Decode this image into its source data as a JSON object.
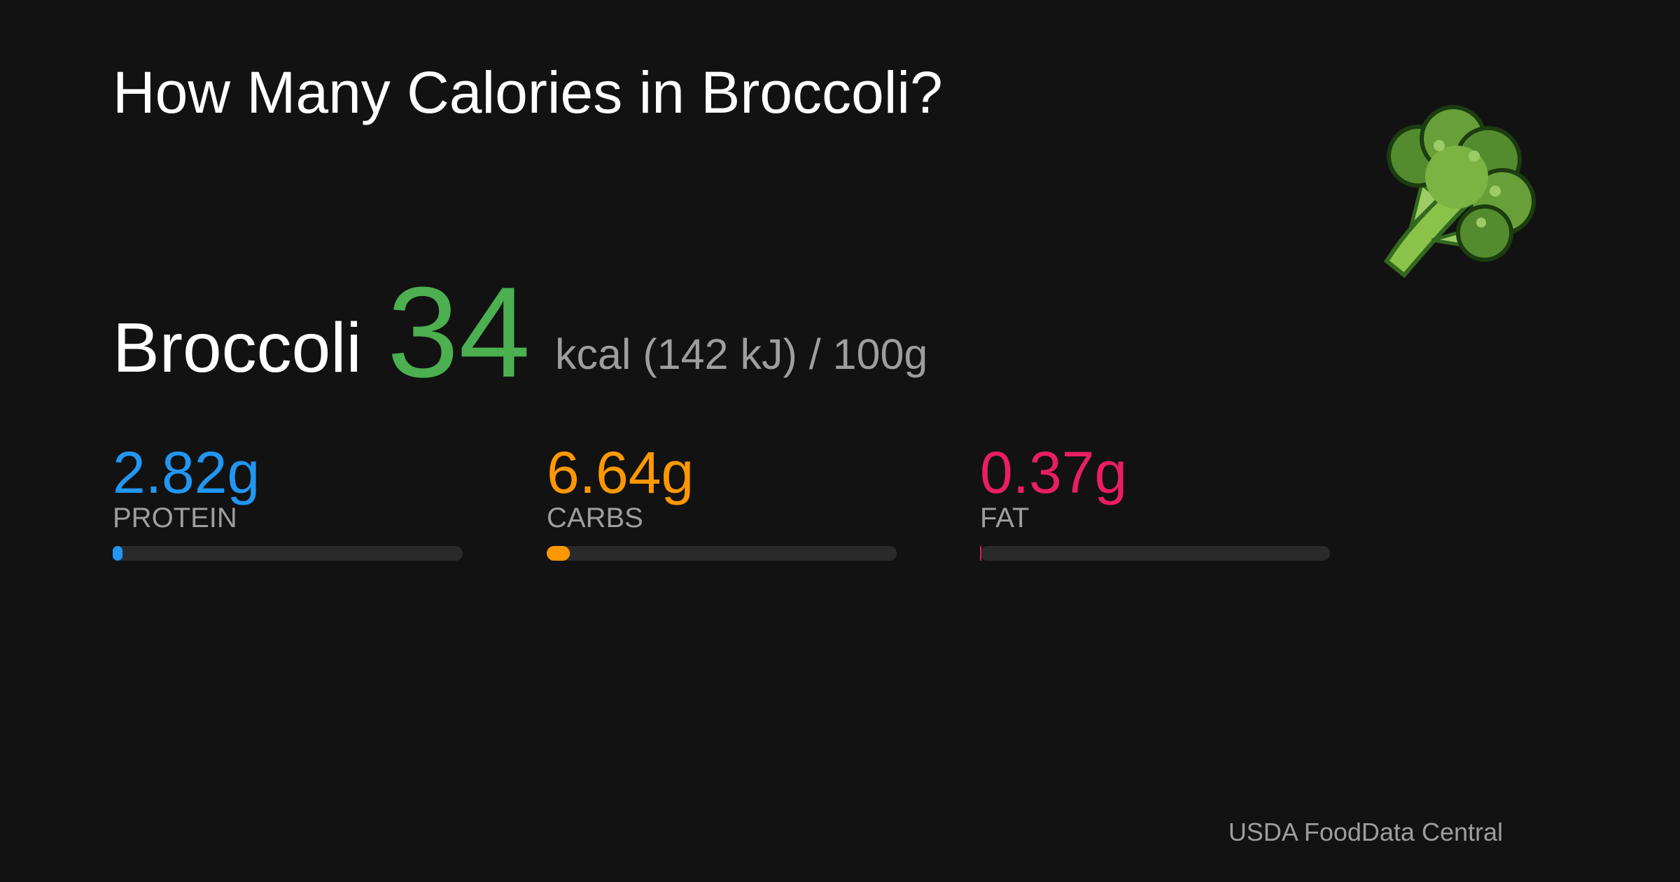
{
  "title": "How Many Calories in Broccoli?",
  "food": "Broccoli",
  "calories": 34,
  "energy_label": "kcal (142 kJ) / 100g",
  "macros": {
    "xlim": [
      0,
      100
    ],
    "items": [
      {
        "value": 2.82,
        "value_label": "2.82g",
        "label": "PROTEIN",
        "color": "#2196f3"
      },
      {
        "value": 6.64,
        "value_label": "6.64g",
        "label": "CARBS",
        "color": "#ff9800"
      },
      {
        "value": 0.37,
        "value_label": "0.37g",
        "label": "FAT",
        "color": "#e91e63"
      }
    ]
  },
  "source": "USDA FoodData Central"
}
